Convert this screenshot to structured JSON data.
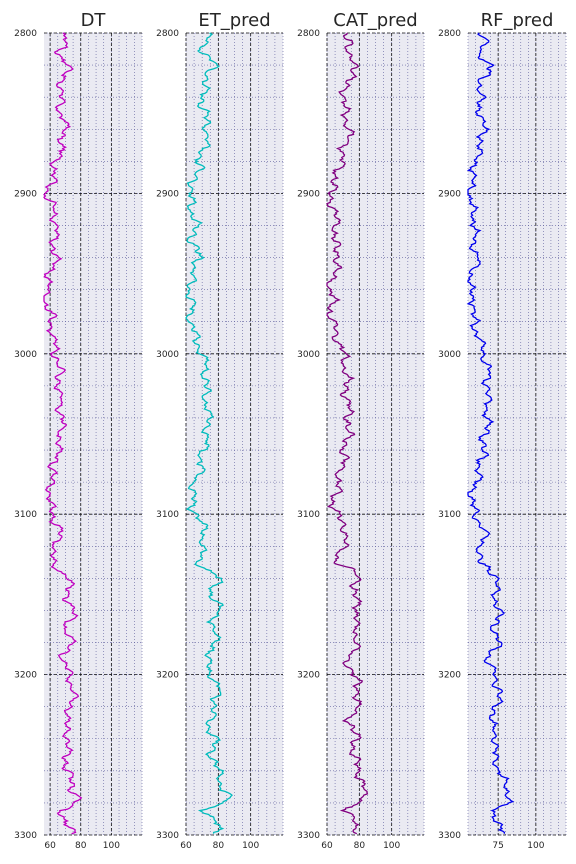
{
  "chart_data": [
    {
      "type": "line",
      "title": "DT",
      "xlabel": "",
      "ylabel": "",
      "color": "#c000c0",
      "xlim": [
        56,
        120
      ],
      "ylim": [
        3300,
        2800
      ],
      "xticks": [
        60,
        80,
        100
      ],
      "yticks": [
        2800,
        2900,
        3000,
        3100,
        3200,
        3300
      ],
      "grid": "major dashed, minor dotted",
      "series": [
        {
          "name": "",
          "profile": [
            [
              2800,
              68
            ],
            [
              2805,
              70
            ],
            [
              2812,
              66
            ],
            [
              2820,
              72
            ],
            [
              2830,
              68
            ],
            [
              2845,
              66
            ],
            [
              2860,
              70
            ],
            [
              2875,
              66
            ],
            [
              2890,
              62
            ],
            [
              2900,
              58
            ],
            [
              2910,
              62
            ],
            [
              2920,
              64
            ],
            [
              2930,
              62
            ],
            [
              2940,
              64
            ],
            [
              2950,
              60
            ],
            [
              2960,
              58
            ],
            [
              2965,
              56
            ],
            [
              2975,
              60
            ],
            [
              2990,
              62
            ],
            [
              3000,
              64
            ],
            [
              3010,
              66
            ],
            [
              3025,
              66
            ],
            [
              3040,
              68
            ],
            [
              3055,
              66
            ],
            [
              3065,
              64
            ],
            [
              3075,
              62
            ],
            [
              3085,
              60
            ],
            [
              3095,
              60
            ],
            [
              3100,
              62
            ],
            [
              3110,
              66
            ],
            [
              3120,
              64
            ],
            [
              3130,
              60
            ],
            [
              3135,
              66
            ],
            [
              3140,
              74
            ],
            [
              3150,
              70
            ],
            [
              3160,
              76
            ],
            [
              3170,
              70
            ],
            [
              3180,
              74
            ],
            [
              3190,
              68
            ],
            [
              3200,
              72
            ],
            [
              3210,
              76
            ],
            [
              3220,
              74
            ],
            [
              3230,
              70
            ],
            [
              3240,
              72
            ],
            [
              3250,
              70
            ],
            [
              3260,
              72
            ],
            [
              3270,
              74
            ],
            [
              3278,
              80
            ],
            [
              3285,
              66
            ],
            [
              3292,
              72
            ],
            [
              3300,
              74
            ]
          ]
        }
      ]
    },
    {
      "type": "line",
      "title": "ET_pred",
      "xlabel": "",
      "ylabel": "",
      "color": "#00bcbc",
      "xlim": [
        60,
        120
      ],
      "ylim": [
        3300,
        2800
      ],
      "xticks": [
        60,
        80,
        100
      ],
      "yticks": [
        2800,
        2900,
        3000,
        3100,
        3200,
        3300
      ],
      "grid": "major dashed, minor dotted",
      "series": [
        {
          "name": "",
          "profile": [
            [
              2800,
              72
            ],
            [
              2805,
              74
            ],
            [
              2812,
              70
            ],
            [
              2820,
              78
            ],
            [
              2830,
              72
            ],
            [
              2845,
              70
            ],
            [
              2860,
              74
            ],
            [
              2875,
              70
            ],
            [
              2890,
              66
            ],
            [
              2900,
              62
            ],
            [
              2910,
              64
            ],
            [
              2920,
              66
            ],
            [
              2930,
              64
            ],
            [
              2940,
              68
            ],
            [
              2950,
              64
            ],
            [
              2960,
              62
            ],
            [
              2970,
              64
            ],
            [
              2975,
              62
            ],
            [
              2990,
              66
            ],
            [
              3000,
              70
            ],
            [
              3010,
              72
            ],
            [
              3025,
              72
            ],
            [
              3040,
              74
            ],
            [
              3055,
              72
            ],
            [
              3065,
              70
            ],
            [
              3075,
              68
            ],
            [
              3085,
              64
            ],
            [
              3095,
              64
            ],
            [
              3100,
              66
            ],
            [
              3110,
              72
            ],
            [
              3120,
              70
            ],
            [
              3130,
              68
            ],
            [
              3135,
              74
            ],
            [
              3140,
              80
            ],
            [
              3150,
              76
            ],
            [
              3160,
              80
            ],
            [
              3170,
              76
            ],
            [
              3180,
              80
            ],
            [
              3190,
              72
            ],
            [
              3200,
              76
            ],
            [
              3210,
              80
            ],
            [
              3220,
              78
            ],
            [
              3230,
              74
            ],
            [
              3240,
              78
            ],
            [
              3250,
              76
            ],
            [
              3260,
              80
            ],
            [
              3270,
              82
            ],
            [
              3278,
              86
            ],
            [
              3285,
              72
            ],
            [
              3292,
              78
            ],
            [
              3300,
              80
            ]
          ]
        }
      ]
    },
    {
      "type": "line",
      "title": "CAT_pred",
      "xlabel": "",
      "ylabel": "",
      "color": "#800080",
      "xlim": [
        60,
        120
      ],
      "ylim": [
        3300,
        2800
      ],
      "xticks": [
        60,
        80,
        100
      ],
      "yticks": [
        2800,
        2900,
        3000,
        3100,
        3200,
        3300
      ],
      "grid": "major dashed, minor dotted",
      "series": [
        {
          "name": "",
          "profile": [
            [
              2800,
              72
            ],
            [
              2805,
              76
            ],
            [
              2812,
              70
            ],
            [
              2820,
              80
            ],
            [
              2830,
              72
            ],
            [
              2845,
              70
            ],
            [
              2860,
              74
            ],
            [
              2875,
              70
            ],
            [
              2890,
              66
            ],
            [
              2900,
              62
            ],
            [
              2910,
              64
            ],
            [
              2920,
              66
            ],
            [
              2930,
              64
            ],
            [
              2940,
              68
            ],
            [
              2950,
              64
            ],
            [
              2960,
              62
            ],
            [
              2970,
              64
            ],
            [
              2975,
              62
            ],
            [
              2990,
              66
            ],
            [
              3000,
              70
            ],
            [
              3010,
              72
            ],
            [
              3025,
              72
            ],
            [
              3040,
              74
            ],
            [
              3055,
              72
            ],
            [
              3065,
              70
            ],
            [
              3075,
              68
            ],
            [
              3085,
              66
            ],
            [
              3095,
              64
            ],
            [
              3100,
              66
            ],
            [
              3110,
              72
            ],
            [
              3120,
              70
            ],
            [
              3130,
              66
            ],
            [
              3135,
              74
            ],
            [
              3140,
              80
            ],
            [
              3150,
              76
            ],
            [
              3160,
              80
            ],
            [
              3170,
              76
            ],
            [
              3180,
              80
            ],
            [
              3190,
              72
            ],
            [
              3200,
              76
            ],
            [
              3210,
              80
            ],
            [
              3220,
              78
            ],
            [
              3230,
              74
            ],
            [
              3240,
              78
            ],
            [
              3250,
              76
            ],
            [
              3260,
              80
            ],
            [
              3270,
              82
            ],
            [
              3278,
              84
            ],
            [
              3285,
              70
            ],
            [
              3292,
              78
            ],
            [
              3300,
              80
            ]
          ]
        }
      ]
    },
    {
      "type": "line",
      "title": "RF_pred",
      "xlabel": "",
      "ylabel": "",
      "color": "#0000ee",
      "xlim": [
        55,
        120
      ],
      "ylim": [
        3300,
        2800
      ],
      "xticks": [
        75,
        100
      ],
      "yticks": [
        2800,
        2900,
        3000,
        3100,
        3200,
        3300
      ],
      "grid": "major dashed, minor dotted",
      "series": [
        {
          "name": "",
          "profile": [
            [
              2800,
              64
            ],
            [
              2805,
              66
            ],
            [
              2812,
              62
            ],
            [
              2820,
              70
            ],
            [
              2830,
              64
            ],
            [
              2845,
              62
            ],
            [
              2860,
              66
            ],
            [
              2875,
              62
            ],
            [
              2890,
              58
            ],
            [
              2900,
              56
            ],
            [
              2910,
              58
            ],
            [
              2920,
              60
            ],
            [
              2930,
              58
            ],
            [
              2940,
              62
            ],
            [
              2950,
              58
            ],
            [
              2960,
              56
            ],
            [
              2970,
              60
            ],
            [
              2975,
              58
            ],
            [
              2990,
              62
            ],
            [
              3000,
              66
            ],
            [
              3010,
              68
            ],
            [
              3025,
              68
            ],
            [
              3040,
              68
            ],
            [
              3055,
              66
            ],
            [
              3065,
              64
            ],
            [
              3075,
              62
            ],
            [
              3085,
              58
            ],
            [
              3095,
              58
            ],
            [
              3100,
              60
            ],
            [
              3110,
              66
            ],
            [
              3120,
              64
            ],
            [
              3130,
              62
            ],
            [
              3135,
              70
            ],
            [
              3140,
              76
            ],
            [
              3150,
              72
            ],
            [
              3160,
              76
            ],
            [
              3170,
              72
            ],
            [
              3180,
              76
            ],
            [
              3190,
              68
            ],
            [
              3200,
              72
            ],
            [
              3210,
              76
            ],
            [
              3220,
              74
            ],
            [
              3230,
              70
            ],
            [
              3240,
              74
            ],
            [
              3250,
              72
            ],
            [
              3260,
              76
            ],
            [
              3270,
              80
            ],
            [
              3278,
              84
            ],
            [
              3285,
              70
            ],
            [
              3292,
              76
            ],
            [
              3300,
              78
            ]
          ]
        }
      ]
    }
  ]
}
